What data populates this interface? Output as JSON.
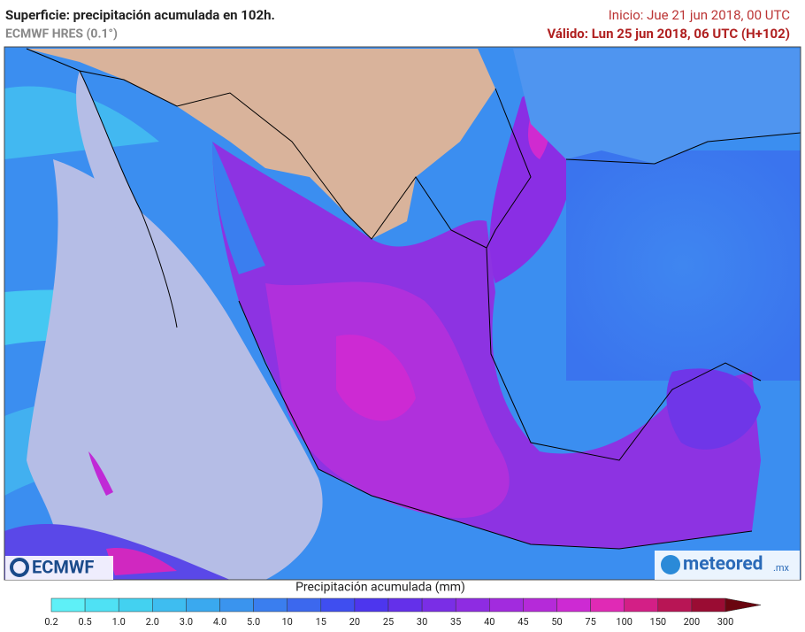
{
  "header": {
    "title": "Superficie: precipitación acumulada en 102h.",
    "model": "ECMWF HRES (0.1°)",
    "init": "Inicio: Jue 21 jun 2018, 00 UTC",
    "valid": "Válido: Lun 25 jun 2018, 06 UTC (H+102)"
  },
  "logos": {
    "left": "ECMWF",
    "right": "meteored",
    "right_suffix": ".mx"
  },
  "legend": {
    "title": "Precipitación acumulada (mm)",
    "labels": [
      "0.2",
      "0.5",
      "1.0",
      "2.0",
      "3.0",
      "4.0",
      "5.0",
      "10",
      "15",
      "20",
      "25",
      "30",
      "35",
      "40",
      "45",
      "50",
      "75",
      "100",
      "150",
      "200",
      "300"
    ],
    "colors": [
      "#5ef0f7",
      "#4fe1f4",
      "#43d1f0",
      "#3ebdf0",
      "#3aa9ef",
      "#3a94ee",
      "#3a7eef",
      "#3c68ee",
      "#3f4ef0",
      "#4d36ee",
      "#6430ea",
      "#7a2ee6",
      "#8e2ce2",
      "#a22bde",
      "#b52ad9",
      "#cd2ad3",
      "#e02ab5",
      "#d31f86",
      "#b81555",
      "#9a0c33",
      "#6a0510"
    ]
  }
}
